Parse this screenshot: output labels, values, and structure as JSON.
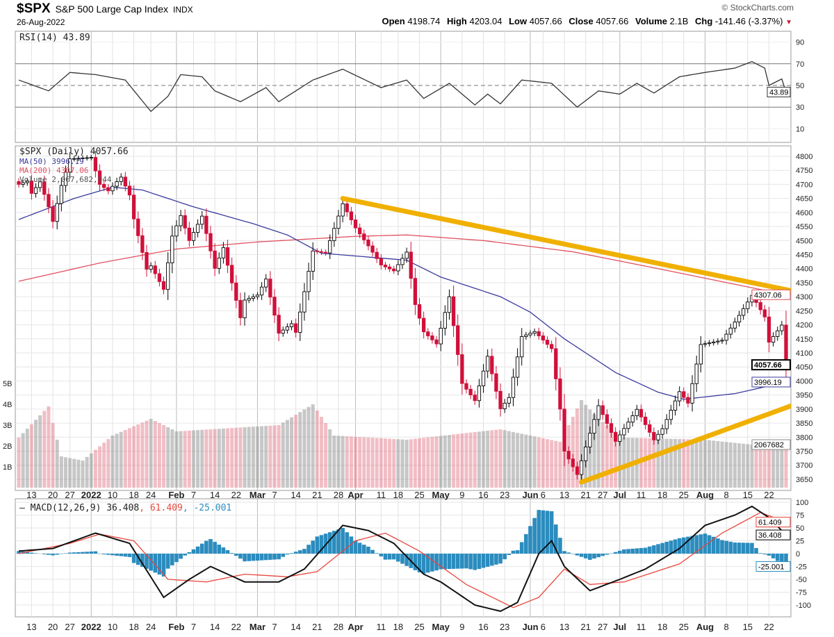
{
  "header": {
    "symbol": "$SPX",
    "name": "S&P 500 Large Cap Index",
    "exchange": "INDX",
    "date": "26-Aug-2022",
    "copyright": "© StockCharts.com",
    "open_label": "Open",
    "open": "4198.74",
    "high_label": "High",
    "high": "4203.04",
    "low_label": "Low",
    "low": "4057.66",
    "close_label": "Close",
    "close": "4057.66",
    "volume_label": "Volume",
    "volume": "2.1B",
    "chg_label": "Chg",
    "chg": "-141.46 (-3.37%)"
  },
  "colors": {
    "up": "#000000",
    "down": "#d0103a",
    "ma50": "#3a3a9e",
    "ma200": "#e05060",
    "trend": "#f0b000",
    "hist": "#2b8cbe",
    "signal": "#e8463c"
  },
  "chart_data": [
    {
      "type": "line",
      "panel": "rsi",
      "legend": "RSI(14) 43.89",
      "ticks": [
        90,
        70,
        50,
        30,
        10
      ],
      "current_label": "43.89",
      "ylim": [
        0,
        100
      ],
      "values": [
        [
          "2021-12-08",
          55
        ],
        [
          "2021-12-17",
          45
        ],
        [
          "2021-12-27",
          62
        ],
        [
          "2022-01-04",
          60
        ],
        [
          "2022-01-13",
          55
        ],
        [
          "2022-01-24",
          26
        ],
        [
          "2022-01-28",
          40
        ],
        [
          "2022-02-02",
          60
        ],
        [
          "2022-02-09",
          58
        ],
        [
          "2022-02-14",
          45
        ],
        [
          "2022-02-23",
          35
        ],
        [
          "2022-03-03",
          48
        ],
        [
          "2022-03-08",
          35
        ],
        [
          "2022-03-18",
          55
        ],
        [
          "2022-03-29",
          65
        ],
        [
          "2022-04-11",
          48
        ],
        [
          "2022-04-20",
          55
        ],
        [
          "2022-04-26",
          38
        ],
        [
          "2022-05-04",
          52
        ],
        [
          "2022-05-12",
          32
        ],
        [
          "2022-05-17",
          42
        ],
        [
          "2022-05-20",
          33
        ],
        [
          "2022-05-27",
          55
        ],
        [
          "2022-06-08",
          52
        ],
        [
          "2022-06-16",
          30
        ],
        [
          "2022-06-24",
          45
        ],
        [
          "2022-07-01",
          42
        ],
        [
          "2022-07-08",
          52
        ],
        [
          "2022-07-14",
          43
        ],
        [
          "2022-07-22",
          58
        ],
        [
          "2022-08-01",
          62
        ],
        [
          "2022-08-10",
          66
        ],
        [
          "2022-08-16",
          72
        ],
        [
          "2022-08-19",
          66
        ],
        [
          "2022-08-22",
          50
        ],
        [
          "2022-08-25",
          56
        ],
        [
          "2022-08-26",
          43.89
        ]
      ]
    },
    {
      "type": "candlestick",
      "panel": "price",
      "legend": [
        "$SPX (Daily) 4057.66",
        "MA(50) 3996.19",
        "MA(200) 4307.06",
        "Volume 2,067,682,944"
      ],
      "ticks": [
        4800,
        4750,
        4700,
        4650,
        4600,
        4550,
        4500,
        4450,
        4400,
        4350,
        4300,
        4250,
        4200,
        4150,
        4100,
        4050,
        4000,
        3950,
        3900,
        3850,
        3800,
        3750,
        3700,
        3650
      ],
      "ylim": [
        3630,
        4830
      ],
      "current_labels": {
        "close": "4057.66",
        "ma50": "3996.19",
        "ma200": "4307.06",
        "volume": "2067682"
      },
      "volume_ticks": [
        "5B",
        "4B",
        "3B",
        "2B",
        "1B"
      ],
      "close": [
        [
          "2021-12-08",
          4700
        ],
        [
          "2021-12-10",
          4712
        ],
        [
          "2021-12-13",
          4668
        ],
        [
          "2021-12-15",
          4709
        ],
        [
          "2021-12-17",
          4620
        ],
        [
          "2021-12-20",
          4568
        ],
        [
          "2021-12-22",
          4696
        ],
        [
          "2021-12-27",
          4791
        ],
        [
          "2021-12-29",
          4793
        ],
        [
          "2022-01-03",
          4796
        ],
        [
          "2022-01-05",
          4700
        ],
        [
          "2022-01-07",
          4677
        ],
        [
          "2022-01-12",
          4726
        ],
        [
          "2022-01-14",
          4662
        ],
        [
          "2022-01-18",
          4577
        ],
        [
          "2022-01-21",
          4398
        ],
        [
          "2022-01-24",
          4410
        ],
        [
          "2022-01-27",
          4326
        ],
        [
          "2022-01-31",
          4516
        ],
        [
          "2022-02-02",
          4589
        ],
        [
          "2022-02-04",
          4500
        ],
        [
          "2022-02-09",
          4587
        ],
        [
          "2022-02-14",
          4401
        ],
        [
          "2022-02-16",
          4475
        ],
        [
          "2022-02-18",
          4349
        ],
        [
          "2022-02-23",
          4225
        ],
        [
          "2022-02-24",
          4288
        ],
        [
          "2022-03-01",
          4306
        ],
        [
          "2022-03-03",
          4363
        ],
        [
          "2022-03-08",
          4170
        ],
        [
          "2022-03-11",
          4204
        ],
        [
          "2022-03-14",
          4173
        ],
        [
          "2022-03-18",
          4463
        ],
        [
          "2022-03-23",
          4456
        ],
        [
          "2022-03-29",
          4631
        ],
        [
          "2022-04-01",
          4545
        ],
        [
          "2022-04-06",
          4481
        ],
        [
          "2022-04-11",
          4413
        ],
        [
          "2022-04-14",
          4392
        ],
        [
          "2022-04-20",
          4459
        ],
        [
          "2022-04-22",
          4272
        ],
        [
          "2022-04-26",
          4175
        ],
        [
          "2022-04-29",
          4132
        ],
        [
          "2022-05-04",
          4300
        ],
        [
          "2022-05-09",
          3991
        ],
        [
          "2022-05-12",
          3930
        ],
        [
          "2022-05-17",
          4088
        ],
        [
          "2022-05-20",
          3901
        ],
        [
          "2022-05-24",
          3941
        ],
        [
          "2022-05-27",
          4158
        ],
        [
          "2022-06-02",
          4176
        ],
        [
          "2022-06-08",
          4115
        ],
        [
          "2022-06-10",
          3900
        ],
        [
          "2022-06-13",
          3750
        ],
        [
          "2022-06-16",
          3667
        ],
        [
          "2022-06-21",
          3765
        ],
        [
          "2022-06-24",
          3912
        ],
        [
          "2022-06-30",
          3785
        ],
        [
          "2022-07-05",
          3831
        ],
        [
          "2022-07-08",
          3899
        ],
        [
          "2022-07-14",
          3790
        ],
        [
          "2022-07-18",
          3830
        ],
        [
          "2022-07-22",
          3962
        ],
        [
          "2022-07-26",
          3921
        ],
        [
          "2022-07-29",
          4130
        ],
        [
          "2022-08-05",
          4145
        ],
        [
          "2022-08-10",
          4210
        ],
        [
          "2022-08-16",
          4305
        ],
        [
          "2022-08-19",
          4228
        ],
        [
          "2022-08-22",
          4138
        ],
        [
          "2022-08-25",
          4199
        ],
        [
          "2022-08-26",
          4057.66
        ]
      ],
      "ma50": [
        [
          "2021-12-08",
          4575
        ],
        [
          "2021-12-28",
          4650
        ],
        [
          "2022-01-10",
          4690
        ],
        [
          "2022-01-20",
          4680
        ],
        [
          "2022-02-07",
          4620
        ],
        [
          "2022-02-28",
          4560
        ],
        [
          "2022-03-10",
          4520
        ],
        [
          "2022-03-22",
          4455
        ],
        [
          "2022-04-01",
          4445
        ],
        [
          "2022-04-20",
          4430
        ],
        [
          "2022-05-02",
          4370
        ],
        [
          "2022-05-20",
          4300
        ],
        [
          "2022-06-01",
          4245
        ],
        [
          "2022-06-13",
          4150
        ],
        [
          "2022-06-30",
          4030
        ],
        [
          "2022-07-15",
          3960
        ],
        [
          "2022-07-25",
          3935
        ],
        [
          "2022-08-10",
          3955
        ],
        [
          "2022-08-26",
          3996.19
        ]
      ],
      "ma200": [
        [
          "2021-12-08",
          4355
        ],
        [
          "2022-01-05",
          4420
        ],
        [
          "2022-02-01",
          4470
        ],
        [
          "2022-03-01",
          4495
        ],
        [
          "2022-04-01",
          4515
        ],
        [
          "2022-04-20",
          4520
        ],
        [
          "2022-05-15",
          4500
        ],
        [
          "2022-06-15",
          4460
        ],
        [
          "2022-07-15",
          4400
        ],
        [
          "2022-08-26",
          4307.06
        ]
      ],
      "volume_billions": [
        [
          "2021-12-08",
          2.4
        ],
        [
          "2021-12-17",
          3.9
        ],
        [
          "2021-12-22",
          1.5
        ],
        [
          "2021-12-30",
          1.3
        ],
        [
          "2022-01-10",
          2.5
        ],
        [
          "2022-01-24",
          3.3
        ],
        [
          "2022-02-01",
          2.7
        ],
        [
          "2022-03-08",
          3.0
        ],
        [
          "2022-03-18",
          4.0
        ],
        [
          "2022-03-25",
          2.5
        ],
        [
          "2022-04-20",
          2.3
        ],
        [
          "2022-05-09",
          2.6
        ],
        [
          "2022-05-20",
          2.8
        ],
        [
          "2022-06-10",
          2.2
        ],
        [
          "2022-06-17",
          4.2
        ],
        [
          "2022-06-24",
          3.3
        ],
        [
          "2022-07-05",
          2.4
        ],
        [
          "2022-08-01",
          2.3
        ],
        [
          "2022-08-19",
          2.0
        ],
        [
          "2022-08-26",
          2.07
        ]
      ],
      "trendlines": [
        {
          "from": [
            "2022-03-29",
            4650
          ],
          "to": [
            "2022-08-26",
            4325
          ]
        },
        {
          "from": [
            "2022-06-17",
            3640
          ],
          "to": [
            "2022-08-26",
            3905
          ]
        }
      ]
    },
    {
      "type": "line",
      "panel": "macd",
      "legend": {
        "prefix": "MACD(12,26,9) 36.408",
        "signal": ", 61.409",
        "hist": ", -25.001"
      },
      "ticks": [
        100,
        75,
        50,
        25,
        0,
        -25,
        -50,
        -75,
        -100
      ],
      "ylim": [
        -115,
        105
      ],
      "current_labels": {
        "signal": "61.409",
        "macd": "36.408",
        "hist": "-25.001"
      },
      "macd": [
        [
          "2021-12-08",
          5
        ],
        [
          "2021-12-20",
          10
        ],
        [
          "2022-01-04",
          40
        ],
        [
          "2022-01-14",
          20
        ],
        [
          "2022-01-27",
          -85
        ],
        [
          "2022-02-04",
          -50
        ],
        [
          "2022-02-11",
          -25
        ],
        [
          "2022-02-24",
          -55
        ],
        [
          "2022-03-08",
          -55
        ],
        [
          "2022-03-16",
          -30
        ],
        [
          "2022-03-29",
          55
        ],
        [
          "2022-04-06",
          45
        ],
        [
          "2022-04-14",
          20
        ],
        [
          "2022-04-26",
          -40
        ],
        [
          "2022-05-02",
          -55
        ],
        [
          "2022-05-12",
          -100
        ],
        [
          "2022-05-20",
          -112
        ],
        [
          "2022-05-26",
          -95
        ],
        [
          "2022-06-03",
          0
        ],
        [
          "2022-06-08",
          25
        ],
        [
          "2022-06-13",
          -25
        ],
        [
          "2022-06-22",
          -72
        ],
        [
          "2022-07-01",
          -50
        ],
        [
          "2022-07-12",
          -30
        ],
        [
          "2022-07-22",
          10
        ],
        [
          "2022-08-01",
          55
        ],
        [
          "2022-08-10",
          75
        ],
        [
          "2022-08-16",
          92
        ],
        [
          "2022-08-22",
          70
        ],
        [
          "2022-08-26",
          36.408
        ]
      ],
      "signal": [
        [
          "2021-12-08",
          0
        ],
        [
          "2021-12-24",
          20
        ],
        [
          "2022-01-05",
          38
        ],
        [
          "2022-01-15",
          25
        ],
        [
          "2022-01-28",
          -50
        ],
        [
          "2022-02-10",
          -55
        ],
        [
          "2022-02-24",
          -40
        ],
        [
          "2022-03-10",
          -45
        ],
        [
          "2022-03-20",
          -35
        ],
        [
          "2022-04-01",
          25
        ],
        [
          "2022-04-12",
          40
        ],
        [
          "2022-04-25",
          5
        ],
        [
          "2022-05-10",
          -60
        ],
        [
          "2022-05-25",
          -105
        ],
        [
          "2022-06-03",
          -85
        ],
        [
          "2022-06-13",
          -30
        ],
        [
          "2022-06-22",
          -60
        ],
        [
          "2022-07-05",
          -55
        ],
        [
          "2022-07-22",
          -20
        ],
        [
          "2022-08-05",
          40
        ],
        [
          "2022-08-18",
          80
        ],
        [
          "2022-08-26",
          61.409
        ]
      ]
    }
  ],
  "x_axis": [
    {
      "d": "2021-12-13",
      "t": "13"
    },
    {
      "d": "2021-12-20",
      "t": "20"
    },
    {
      "d": "2021-12-27",
      "t": "27"
    },
    {
      "d": "2022-01-03",
      "t": "2022",
      "bold": true
    },
    {
      "d": "2022-01-10",
      "t": "10"
    },
    {
      "d": "2022-01-18",
      "t": "18"
    },
    {
      "d": "2022-01-24",
      "t": "24"
    },
    {
      "d": "2022-02-01",
      "t": "Feb",
      "bold": true
    },
    {
      "d": "2022-02-07",
      "t": "7"
    },
    {
      "d": "2022-02-14",
      "t": "14"
    },
    {
      "d": "2022-02-22",
      "t": "22"
    },
    {
      "d": "2022-03-01",
      "t": "Mar",
      "bold": true
    },
    {
      "d": "2022-03-07",
      "t": "7"
    },
    {
      "d": "2022-03-14",
      "t": "14"
    },
    {
      "d": "2022-03-21",
      "t": "21"
    },
    {
      "d": "2022-03-28",
      "t": "28"
    },
    {
      "d": "2022-04-01",
      "t": "Apr",
      "bold": true
    },
    {
      "d": "2022-04-11",
      "t": "11"
    },
    {
      "d": "2022-04-18",
      "t": "18"
    },
    {
      "d": "2022-04-25",
      "t": "25"
    },
    {
      "d": "2022-05-02",
      "t": "May",
      "bold": true
    },
    {
      "d": "2022-05-09",
      "t": "9"
    },
    {
      "d": "2022-05-16",
      "t": "16"
    },
    {
      "d": "2022-05-23",
      "t": "23"
    },
    {
      "d": "2022-06-01",
      "t": "Jun",
      "bold": true
    },
    {
      "d": "2022-06-06",
      "t": "6"
    },
    {
      "d": "2022-06-13",
      "t": "13"
    },
    {
      "d": "2022-06-21",
      "t": "21"
    },
    {
      "d": "2022-06-27",
      "t": "27"
    },
    {
      "d": "2022-07-01",
      "t": "Jul",
      "bold": true
    },
    {
      "d": "2022-07-11",
      "t": "11"
    },
    {
      "d": "2022-07-18",
      "t": "18"
    },
    {
      "d": "2022-07-25",
      "t": "25"
    },
    {
      "d": "2022-08-01",
      "t": "Aug",
      "bold": true
    },
    {
      "d": "2022-08-08",
      "t": "8"
    },
    {
      "d": "2022-08-15",
      "t": "15"
    },
    {
      "d": "2022-08-22",
      "t": "22"
    }
  ]
}
